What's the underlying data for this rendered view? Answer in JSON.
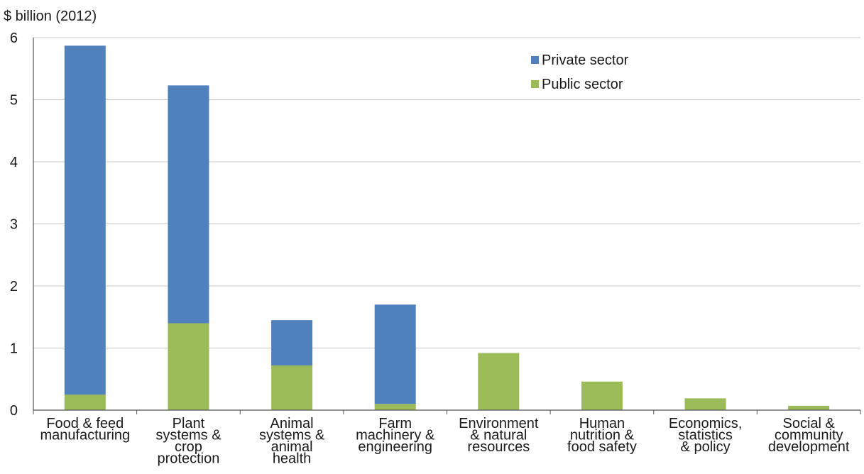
{
  "chart_data": {
    "type": "bar",
    "stacked": true,
    "ylabel": "$ billion (2012)",
    "ylim": [
      0,
      6
    ],
    "yticks": [
      "0",
      "1",
      "2",
      "3",
      "4",
      "5",
      "6"
    ],
    "grid": true,
    "legend_position": "top-right",
    "categories": [
      [
        "Food & feed",
        "manufacturing"
      ],
      [
        "Plant",
        "systems &",
        "crop",
        "protection"
      ],
      [
        "Animal",
        "systems &",
        "animal",
        "health"
      ],
      [
        "Farm",
        "machinery &",
        "engineering"
      ],
      [
        "Environment",
        "& natural",
        "resources"
      ],
      [
        "Human",
        "nutrition &",
        "food safety"
      ],
      [
        "Economics,",
        "statistics",
        "& policy"
      ],
      [
        "Social &",
        "community",
        "development"
      ]
    ],
    "series": [
      {
        "name": "Public sector",
        "color": "#9bbb59",
        "values": [
          0.25,
          1.4,
          0.72,
          0.1,
          0.92,
          0.46,
          0.19,
          0.07
        ]
      },
      {
        "name": "Private sector",
        "color": "#4f81bd",
        "values": [
          5.62,
          3.83,
          0.73,
          1.6,
          0,
          0,
          0,
          0
        ]
      }
    ],
    "legend_order": [
      "Private sector",
      "Public sector"
    ]
  }
}
